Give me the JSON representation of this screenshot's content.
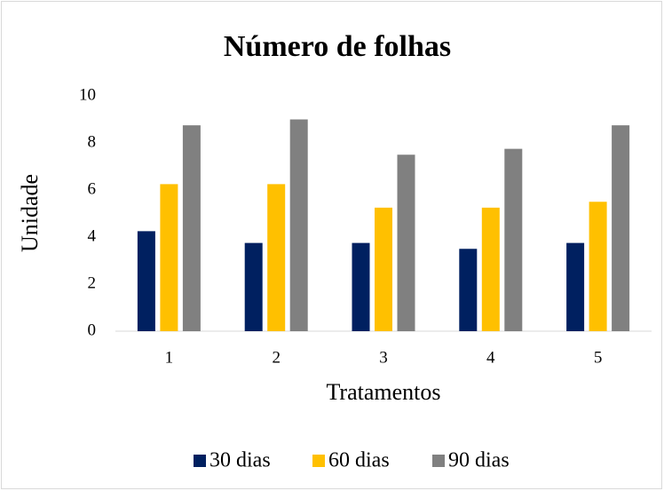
{
  "chart_data": {
    "type": "bar",
    "title": "Número de folhas",
    "x_label": "Tratamentos",
    "y_label": "Unidade",
    "categories": [
      "1",
      "2",
      "3",
      "4",
      "5"
    ],
    "series": [
      {
        "name": "30 dias",
        "color": "#002060",
        "values": [
          4.25,
          3.75,
          3.75,
          3.5,
          3.75
        ]
      },
      {
        "name": "60 dias",
        "color": "#ffc000",
        "values": [
          6.25,
          6.25,
          5.25,
          5.25,
          5.5
        ]
      },
      {
        "name": "90 dias",
        "color": "#808080",
        "values": [
          8.75,
          9.0,
          7.5,
          7.75,
          8.75
        ]
      }
    ],
    "ylim": [
      0,
      10
    ],
    "yticks": [
      0,
      2,
      4,
      6,
      8,
      10
    ],
    "grid": false,
    "legend": "bottom"
  }
}
